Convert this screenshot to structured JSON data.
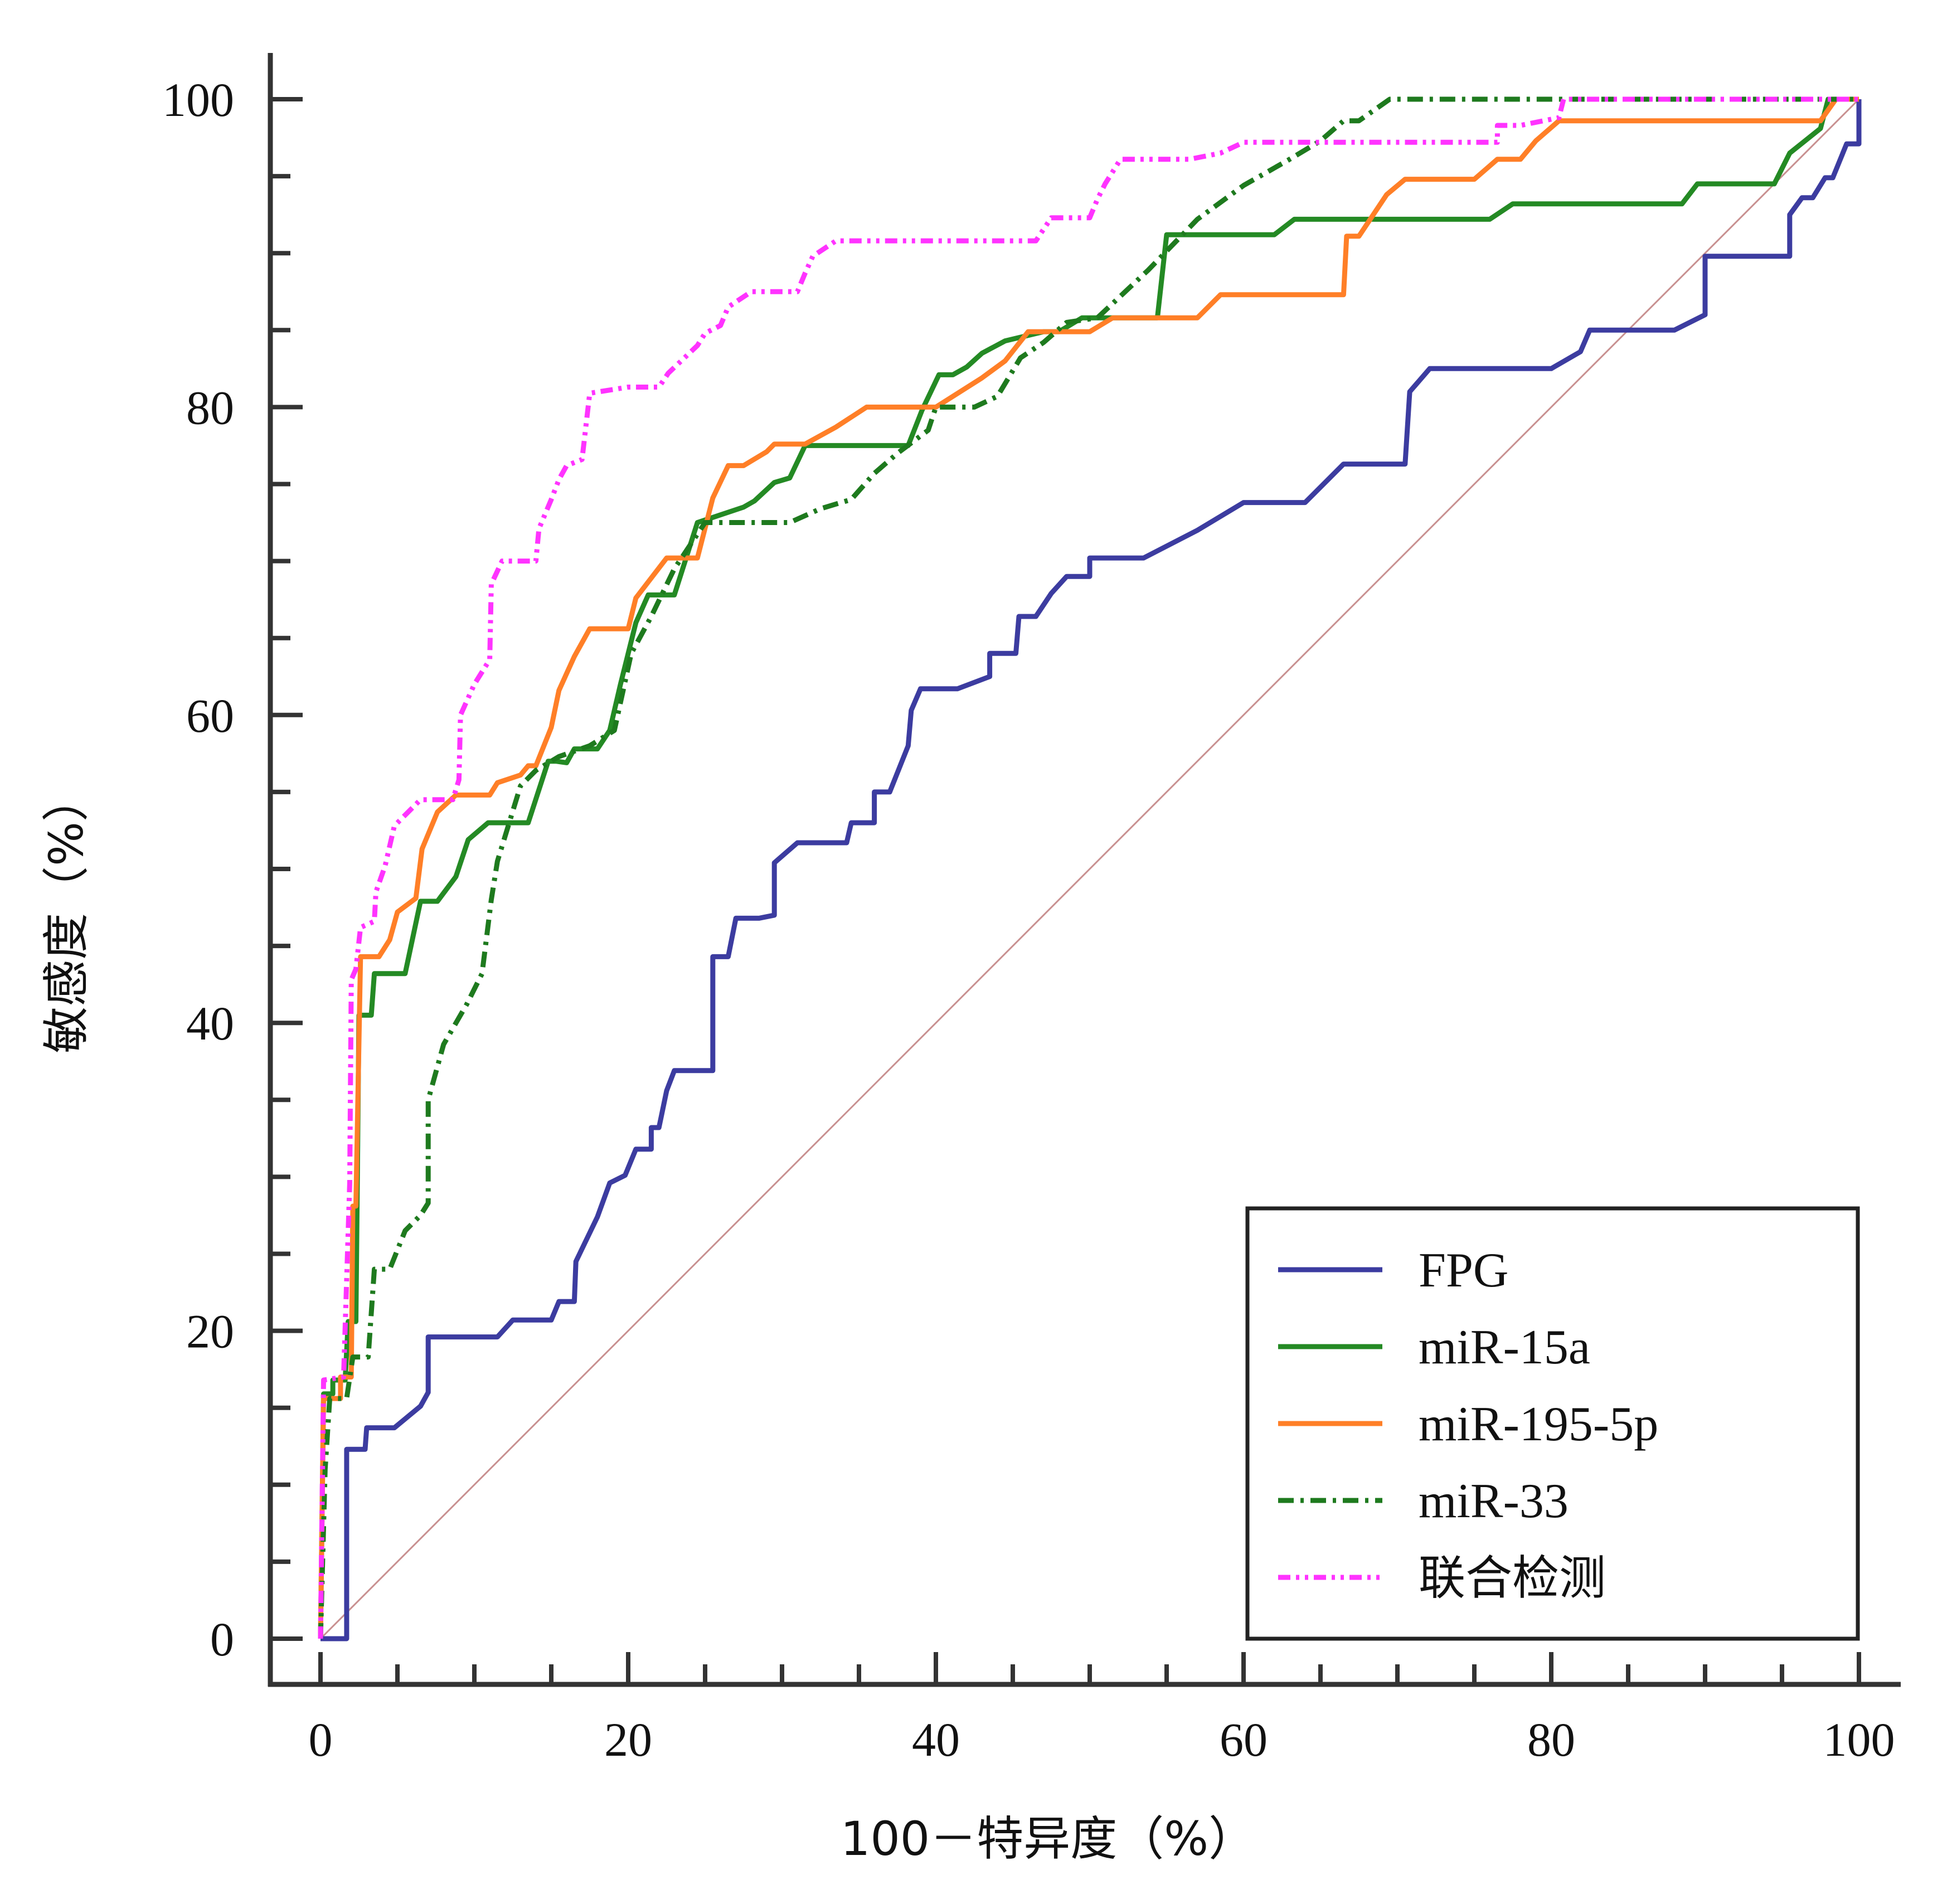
{
  "chart_data": {
    "type": "line",
    "subtype": "roc",
    "title": "",
    "xlabel": "100－特异度（%）",
    "ylabel": "敏感度（%）",
    "xlim": [
      0,
      100
    ],
    "ylim": [
      0,
      100
    ],
    "x_ticks": [
      0,
      20,
      40,
      60,
      80,
      100
    ],
    "y_ticks": [
      0,
      20,
      40,
      60,
      80,
      100
    ],
    "x_tick_labels": [
      "0",
      "20",
      "40",
      "60",
      "80",
      "100"
    ],
    "y_tick_labels": [
      "0",
      "20",
      "40",
      "60",
      "80",
      "100"
    ],
    "grid": false,
    "legend_position": "bottom-right",
    "reference_line": {
      "name": "diagonal",
      "color": "#c89090",
      "points": [
        [
          0,
          0
        ],
        [
          100,
          100
        ]
      ]
    },
    "series": [
      {
        "name": "FPG",
        "color": "#3c3ca0",
        "dash": "solid",
        "points": [
          [
            0,
            0
          ],
          [
            1.7,
            0
          ],
          [
            1.7,
            12.3
          ],
          [
            2.9,
            12.3
          ],
          [
            3,
            13.7
          ],
          [
            4.8,
            13.7
          ],
          [
            6.5,
            15.1
          ],
          [
            7,
            16
          ],
          [
            7,
            19.6
          ],
          [
            11.5,
            19.6
          ],
          [
            12.5,
            20.7
          ],
          [
            15,
            20.7
          ],
          [
            15.5,
            21.9
          ],
          [
            16.5,
            21.9
          ],
          [
            16.6,
            24.5
          ],
          [
            18,
            27.4
          ],
          [
            18.8,
            29.6
          ],
          [
            19.8,
            30.1
          ],
          [
            20.5,
            31.8
          ],
          [
            21.5,
            31.8
          ],
          [
            21.5,
            33.2
          ],
          [
            22,
            33.2
          ],
          [
            22.5,
            35.6
          ],
          [
            23,
            36.9
          ],
          [
            25.5,
            36.9
          ],
          [
            25.5,
            44.3
          ],
          [
            26.5,
            44.3
          ],
          [
            27,
            46.8
          ],
          [
            28.5,
            46.8
          ],
          [
            29.5,
            47
          ],
          [
            29.5,
            50.4
          ],
          [
            31,
            51.7
          ],
          [
            34.2,
            51.7
          ],
          [
            34.5,
            53
          ],
          [
            36,
            53
          ],
          [
            36,
            55
          ],
          [
            37,
            55
          ],
          [
            38.2,
            58
          ],
          [
            38.4,
            60.3
          ],
          [
            39,
            61.7
          ],
          [
            41.4,
            61.7
          ],
          [
            43.5,
            62.5
          ],
          [
            43.5,
            64
          ],
          [
            45.2,
            64
          ],
          [
            45.4,
            66.4
          ],
          [
            46.5,
            66.4
          ],
          [
            47.5,
            67.9
          ],
          [
            48.5,
            69
          ],
          [
            50,
            69
          ],
          [
            50,
            70.2
          ],
          [
            53.5,
            70.2
          ],
          [
            57,
            72
          ],
          [
            60,
            73.8
          ],
          [
            64,
            73.8
          ],
          [
            66.5,
            76.3
          ],
          [
            70.5,
            76.3
          ],
          [
            70.8,
            81
          ],
          [
            72.1,
            82.5
          ],
          [
            80,
            82.5
          ],
          [
            81.9,
            83.6
          ],
          [
            82.5,
            85
          ],
          [
            88,
            85
          ],
          [
            90,
            86
          ],
          [
            90,
            89.8
          ],
          [
            95.5,
            89.8
          ],
          [
            95.5,
            92.5
          ],
          [
            96.3,
            93.6
          ],
          [
            97,
            93.6
          ],
          [
            97.8,
            94.9
          ],
          [
            98.3,
            94.9
          ],
          [
            99.2,
            97.1
          ],
          [
            100,
            97.1
          ],
          [
            100,
            100
          ]
        ]
      },
      {
        "name": "miR-15a",
        "color": "#248a24",
        "dash": "solid",
        "points": [
          [
            0,
            0
          ],
          [
            0.2,
            15.9
          ],
          [
            0.8,
            15.9
          ],
          [
            0.8,
            16.8
          ],
          [
            1.6,
            16.8
          ],
          [
            1.8,
            20.6
          ],
          [
            2.3,
            20.6
          ],
          [
            2.5,
            40.5
          ],
          [
            3.3,
            40.5
          ],
          [
            3.5,
            43.2
          ],
          [
            5.5,
            43.2
          ],
          [
            6.5,
            47.9
          ],
          [
            7.6,
            47.9
          ],
          [
            8.8,
            49.5
          ],
          [
            9.6,
            51.9
          ],
          [
            10.9,
            53
          ],
          [
            13.5,
            53
          ],
          [
            14.8,
            57
          ],
          [
            15.3,
            57
          ],
          [
            16,
            56.9
          ],
          [
            16.5,
            57.8
          ],
          [
            18,
            57.8
          ],
          [
            18.8,
            59
          ],
          [
            19.5,
            62
          ],
          [
            20.5,
            66
          ],
          [
            21.3,
            67.8
          ],
          [
            23,
            67.8
          ],
          [
            24.5,
            72.5
          ],
          [
            27.5,
            73.5
          ],
          [
            28.2,
            73.9
          ],
          [
            29.5,
            75.1
          ],
          [
            30.5,
            75.4
          ],
          [
            31.5,
            77.5
          ],
          [
            38.2,
            77.5
          ],
          [
            39.1,
            79.8
          ],
          [
            40.2,
            82.1
          ],
          [
            41.1,
            82.1
          ],
          [
            42,
            82.6
          ],
          [
            43,
            83.5
          ],
          [
            44.5,
            84.3
          ],
          [
            47,
            84.9
          ],
          [
            48,
            84.9
          ],
          [
            49.5,
            85.8
          ],
          [
            54.4,
            85.8
          ],
          [
            55,
            91.2
          ],
          [
            62,
            91.2
          ],
          [
            63.3,
            92.2
          ],
          [
            76,
            92.2
          ],
          [
            77.5,
            93.2
          ],
          [
            88.5,
            93.2
          ],
          [
            89.5,
            94.5
          ],
          [
            94.5,
            94.5
          ],
          [
            95,
            95.5
          ],
          [
            95.5,
            96.5
          ],
          [
            97.5,
            98.1
          ],
          [
            98,
            100
          ],
          [
            100,
            100
          ]
        ]
      },
      {
        "name": "miR-195-5p",
        "color": "#ff7f27",
        "dash": "solid",
        "points": [
          [
            0,
            0
          ],
          [
            0.2,
            15.6
          ],
          [
            1.3,
            15.6
          ],
          [
            1.3,
            17
          ],
          [
            2,
            17
          ],
          [
            2.1,
            28.1
          ],
          [
            2.3,
            28.1
          ],
          [
            2.6,
            44.3
          ],
          [
            3.8,
            44.3
          ],
          [
            4.5,
            45.4
          ],
          [
            5,
            47.2
          ],
          [
            6.2,
            48.1
          ],
          [
            6.6,
            51.3
          ],
          [
            7.6,
            53.7
          ],
          [
            8.8,
            54.8
          ],
          [
            11,
            54.8
          ],
          [
            11.5,
            55.6
          ],
          [
            13,
            56.1
          ],
          [
            13.5,
            56.7
          ],
          [
            14,
            56.7
          ],
          [
            15,
            59.2
          ],
          [
            15.5,
            61.6
          ],
          [
            16.5,
            63.8
          ],
          [
            17.5,
            65.6
          ],
          [
            20,
            65.6
          ],
          [
            20.5,
            67.6
          ],
          [
            22.5,
            70.2
          ],
          [
            24.5,
            70.2
          ],
          [
            25.5,
            74.1
          ],
          [
            26.5,
            76.2
          ],
          [
            27.5,
            76.2
          ],
          [
            29,
            77.1
          ],
          [
            29.5,
            77.6
          ],
          [
            31.5,
            77.6
          ],
          [
            33.5,
            78.7
          ],
          [
            35.5,
            80
          ],
          [
            40,
            80
          ],
          [
            43,
            81.9
          ],
          [
            44.5,
            83
          ],
          [
            46,
            84.9
          ],
          [
            50,
            84.9
          ],
          [
            51.5,
            85.8
          ],
          [
            57,
            85.8
          ],
          [
            58.5,
            87.3
          ],
          [
            66.5,
            87.3
          ],
          [
            66.7,
            91.1
          ],
          [
            67.5,
            91.1
          ],
          [
            69.3,
            93.8
          ],
          [
            70.5,
            94.8
          ],
          [
            75,
            94.8
          ],
          [
            76.5,
            96.1
          ],
          [
            78,
            96.1
          ],
          [
            79,
            97.3
          ],
          [
            80.5,
            98.6
          ],
          [
            97.5,
            98.6
          ],
          [
            98.5,
            100
          ],
          [
            100,
            100
          ]
        ]
      },
      {
        "name": "miR-33",
        "color": "#1e7a1e",
        "dash": "dashdot",
        "points": [
          [
            0,
            0
          ],
          [
            0.3,
            11
          ],
          [
            0.6,
            15.6
          ],
          [
            1.7,
            15.6
          ],
          [
            2.1,
            18.3
          ],
          [
            3.1,
            18.3
          ],
          [
            3.5,
            24
          ],
          [
            4.5,
            24
          ],
          [
            5.5,
            26.5
          ],
          [
            6.5,
            27.5
          ],
          [
            7,
            28.3
          ],
          [
            7,
            35
          ],
          [
            8,
            38.6
          ],
          [
            9.5,
            41.2
          ],
          [
            10.5,
            43.2
          ],
          [
            11.1,
            48
          ],
          [
            11.5,
            50.5
          ],
          [
            13,
            55.4
          ],
          [
            14,
            56.4
          ],
          [
            15.5,
            57.3
          ],
          [
            17.5,
            58
          ],
          [
            19.1,
            59
          ],
          [
            20.2,
            64
          ],
          [
            21.5,
            66.4
          ],
          [
            23,
            69.5
          ],
          [
            25,
            72.5
          ],
          [
            30.5,
            72.5
          ],
          [
            32.5,
            73.4
          ],
          [
            34.5,
            74
          ],
          [
            36,
            75.7
          ],
          [
            37.5,
            77
          ],
          [
            39.5,
            78.5
          ],
          [
            40,
            80
          ],
          [
            42.5,
            80
          ],
          [
            44,
            80.7
          ],
          [
            45.5,
            83.2
          ],
          [
            47,
            84.2
          ],
          [
            48.5,
            85.5
          ],
          [
            50.5,
            85.8
          ],
          [
            53.8,
            88.9
          ],
          [
            57,
            92.2
          ],
          [
            60,
            94.4
          ],
          [
            63,
            96.1
          ],
          [
            65,
            97.3
          ],
          [
            66.5,
            98.6
          ],
          [
            67.5,
            98.6
          ],
          [
            69.5,
            100
          ],
          [
            100,
            100
          ]
        ]
      },
      {
        "name": "联合检测",
        "color": "#ff33ff",
        "dash": "dashdotdot",
        "points": [
          [
            0,
            0
          ],
          [
            0.2,
            16.8
          ],
          [
            1.5,
            17
          ],
          [
            1.9,
            29.6
          ],
          [
            2,
            42.8
          ],
          [
            2.3,
            43.5
          ],
          [
            2.6,
            46.2
          ],
          [
            3.5,
            46.6
          ],
          [
            3.6,
            48.5
          ],
          [
            4.2,
            50.2
          ],
          [
            4.8,
            52.8
          ],
          [
            6.5,
            54.5
          ],
          [
            8.6,
            54.5
          ],
          [
            9,
            55.8
          ],
          [
            9.1,
            60
          ],
          [
            10,
            62
          ],
          [
            11,
            63.6
          ],
          [
            11.1,
            68.5
          ],
          [
            11.8,
            70
          ],
          [
            14,
            70
          ],
          [
            14.2,
            72.1
          ],
          [
            15,
            74
          ],
          [
            15.5,
            75.3
          ],
          [
            16,
            76.2
          ],
          [
            17,
            76.6
          ],
          [
            17.5,
            80.9
          ],
          [
            20,
            81.3
          ],
          [
            22,
            81.3
          ],
          [
            22.6,
            82.2
          ],
          [
            24.5,
            84
          ],
          [
            25,
            84.8
          ],
          [
            26,
            85.3
          ],
          [
            26.5,
            86.5
          ],
          [
            28,
            87.5
          ],
          [
            31,
            87.5
          ],
          [
            31.5,
            88.7
          ],
          [
            32,
            89.8
          ],
          [
            33.5,
            90.8
          ],
          [
            46.5,
            90.8
          ],
          [
            47.5,
            92.3
          ],
          [
            50,
            92.3
          ],
          [
            50.5,
            93.5
          ],
          [
            51,
            94.5
          ],
          [
            52,
            96.1
          ],
          [
            56.5,
            96.1
          ],
          [
            58.5,
            96.5
          ],
          [
            60,
            97.2
          ],
          [
            76.5,
            97.2
          ],
          [
            76.5,
            98.3
          ],
          [
            77,
            98.3
          ],
          [
            78,
            98.3
          ],
          [
            80.5,
            98.8
          ],
          [
            80.8,
            100
          ],
          [
            100,
            100
          ]
        ]
      }
    ]
  }
}
